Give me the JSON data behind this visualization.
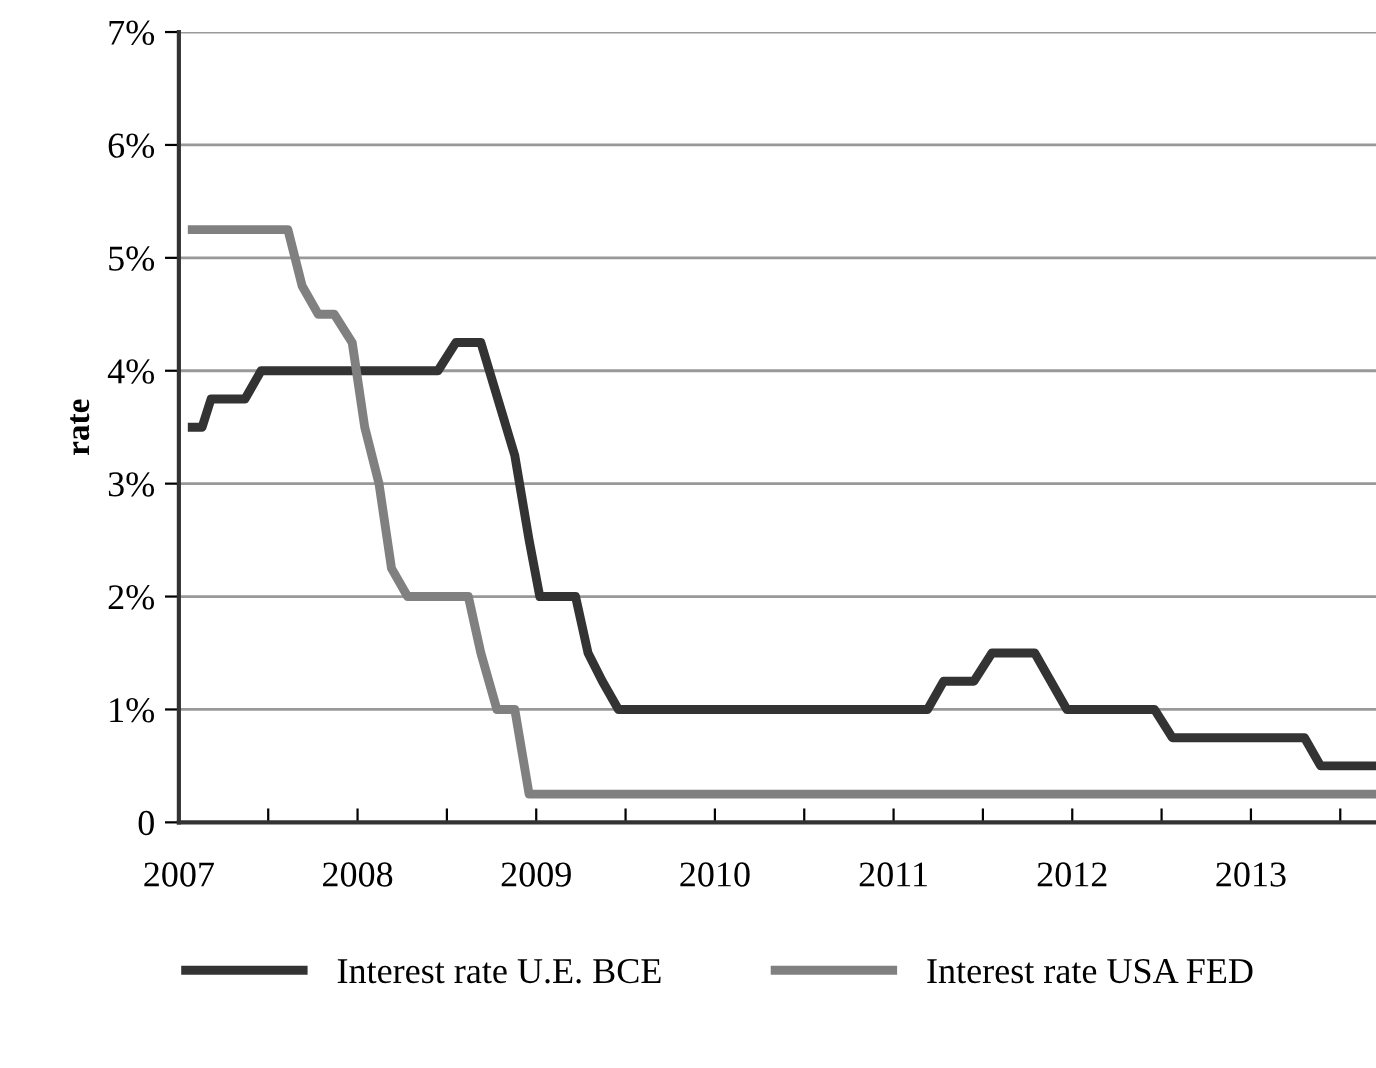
{
  "chart_data": {
    "type": "line",
    "ylabel": "rate",
    "xlim": [
      2007,
      2013.7
    ],
    "xticks": [
      2007,
      {
        "value": 2007.5,
        "label": null
      },
      2008,
      {
        "value": 2008.5,
        "label": null
      },
      2009,
      {
        "value": 2009.5,
        "label": null
      },
      2010,
      {
        "value": 2010.5,
        "label": null
      },
      2011,
      {
        "value": 2011.5,
        "label": null
      },
      2012,
      {
        "value": 2012.5,
        "label": null
      },
      2013,
      {
        "value": 2013.5,
        "label": null
      }
    ],
    "ylim": [
      0,
      7
    ],
    "yticks": [
      0,
      {
        "value": 1,
        "label": "1%"
      },
      {
        "value": 2,
        "label": "2%"
      },
      {
        "value": 3,
        "label": "3%"
      },
      {
        "value": 4,
        "label": "4%"
      },
      {
        "value": 5,
        "label": "5%"
      },
      {
        "value": 6,
        "label": "6%"
      },
      {
        "value": 7,
        "label": "7%"
      }
    ],
    "grid": "y",
    "legend": "bottom",
    "marker": "none",
    "line_style": "solid",
    "series": [
      {
        "name": "Interest rate U.E. BCE",
        "color": "#333333",
        "x": [
          2007.05,
          2007.13,
          2007.18,
          2007.37,
          2007.46,
          2008.45,
          2008.55,
          2008.69,
          2008.88,
          2008.96,
          2009.02,
          2009.22,
          2009.29,
          2009.37,
          2009.46,
          2011.19,
          2011.28,
          2011.45,
          2011.55,
          2011.79,
          2011.97,
          2012.46,
          2012.56,
          2013.3,
          2013.39,
          2013.7
        ],
        "values": [
          3.5,
          3.5,
          3.75,
          3.75,
          4.0,
          4.0,
          4.25,
          4.25,
          3.25,
          2.5,
          2.0,
          2.0,
          1.5,
          1.25,
          1.0,
          1.0,
          1.25,
          1.25,
          1.5,
          1.5,
          1.0,
          1.0,
          0.75,
          0.75,
          0.5,
          0.5
        ]
      },
      {
        "name": "Interest rate USA FED",
        "color": "#808080",
        "x": [
          2007.05,
          2007.61,
          2007.69,
          2007.78,
          2007.87,
          2007.97,
          2008.04,
          2008.12,
          2008.19,
          2008.28,
          2008.62,
          2008.69,
          2008.78,
          2008.88,
          2008.96,
          2013.7
        ],
        "values": [
          5.25,
          5.25,
          4.75,
          4.5,
          4.5,
          4.25,
          3.5,
          3.0,
          2.25,
          2.0,
          2.0,
          1.5,
          1.0,
          1.0,
          0.25,
          0.25
        ]
      }
    ]
  }
}
